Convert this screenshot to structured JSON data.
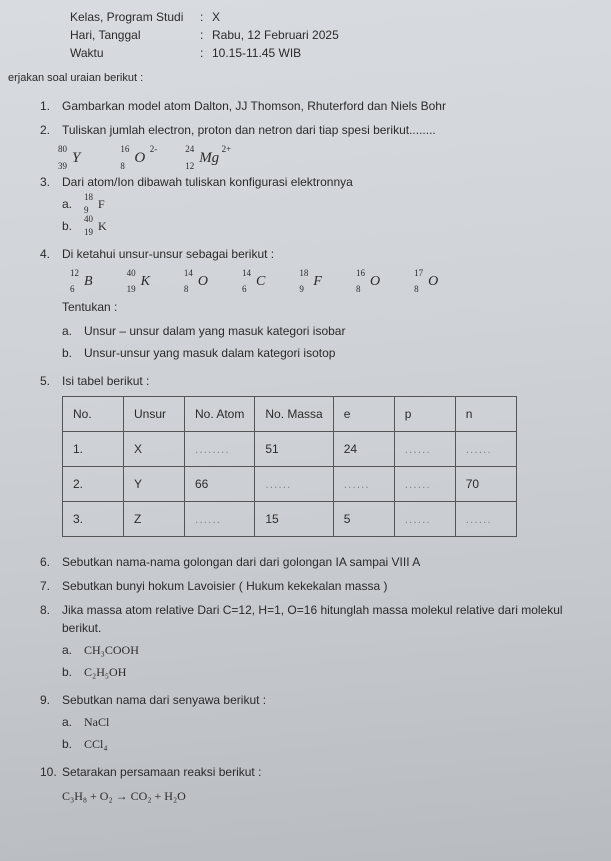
{
  "header": {
    "rows": [
      {
        "label": "Kelas, Program Studi",
        "value": "X"
      },
      {
        "label": "Hari, Tanggal",
        "value": "Rabu, 12 Februari 2025"
      },
      {
        "label": "Waktu",
        "value": "10.15-11.45 WIB"
      }
    ]
  },
  "instruction": "erjakan soal uraian berikut :",
  "q1": {
    "num": "1.",
    "text": "Gambarkan model atom Dalton, JJ Thomson, Rhuterford dan Niels Bohr"
  },
  "q2": {
    "num": "2.",
    "text": "Tuliskan jumlah electron, proton dan netron dari tiap spesi berikut........"
  },
  "species": [
    {
      "tl": "80",
      "bl": "39",
      "sym": "Y",
      "tr": ""
    },
    {
      "tl": "16",
      "bl": "8",
      "sym": "O",
      "tr": "2-"
    },
    {
      "tl": "24",
      "bl": "12",
      "sym": "Mg",
      "tr": "2+"
    }
  ],
  "q3": {
    "num": "3.",
    "text": "Dari atom/Ion dibawah tuliskan konfigurasi elektronnya",
    "a": {
      "letter": "a.",
      "tl": "18",
      "bl": "9",
      "sym": "F"
    },
    "b": {
      "letter": "b.",
      "tl": "40",
      "bl": "19",
      "sym": "K"
    }
  },
  "q4": {
    "num": "4.",
    "text": "Di ketahui unsur-unsur sebagai berikut :",
    "items": [
      {
        "tl": "12",
        "bl": "6",
        "sym": "B"
      },
      {
        "tl": "40",
        "bl": "19",
        "sym": "K"
      },
      {
        "tl": "14",
        "bl": "8",
        "sym": "O"
      },
      {
        "tl": "14",
        "bl": "6",
        "sym": "C"
      },
      {
        "tl": "18",
        "bl": "9",
        "sym": "F"
      },
      {
        "tl": "16",
        "bl": "8",
        "sym": "O"
      },
      {
        "tl": "17",
        "bl": "8",
        "sym": "O"
      }
    ],
    "tentukan": "Tentukan :",
    "a": {
      "letter": "a.",
      "text": "Unsur – unsur dalam yang masuk kategori isobar"
    },
    "b": {
      "letter": "b.",
      "text": "Unsur-unsur yang masuk dalam kategori isotop"
    }
  },
  "q5": {
    "num": "5.",
    "text": "Isi tabel berikut :",
    "table": {
      "headers": [
        "No.",
        "Unsur",
        "No. Atom",
        "No. Massa",
        "e",
        "p",
        "n"
      ],
      "rows": [
        [
          "1.",
          "X",
          "........",
          "51",
          "24",
          "......",
          "......"
        ],
        [
          "2.",
          "Y",
          "66",
          "......",
          "......",
          "......",
          "70"
        ],
        [
          "3.",
          "Z",
          "......",
          "15",
          "5",
          "......",
          "......"
        ]
      ]
    }
  },
  "q6": {
    "num": "6.",
    "text": "Sebutkan nama-nama golongan dari dari golongan IA sampai VIII A"
  },
  "q7": {
    "num": "7.",
    "text": "Sebutkan bunyi hokum Lavoisier ( Hukum kekekalan massa )"
  },
  "q8": {
    "num": "8.",
    "text": "Jika massa atom relative Dari C=12, H=1, O=16 hitunglah massa molekul relative dari molekul berikut.",
    "a": {
      "letter": "a.",
      "formula": "CH₃COOH"
    },
    "b": {
      "letter": "b.",
      "formula": "C₂H₅OH"
    }
  },
  "q9": {
    "num": "9.",
    "text": "Sebutkan nama dari senyawa berikut :",
    "a": {
      "letter": "a.",
      "formula": "NaCl"
    },
    "b": {
      "letter": "b.",
      "formula": "CCl₄"
    }
  },
  "q10": {
    "num": "10.",
    "text": "Setarakan persamaan reaksi berikut :",
    "eq": "C₃H₈  +  O₂  →  CO₂  +  H₂O"
  }
}
